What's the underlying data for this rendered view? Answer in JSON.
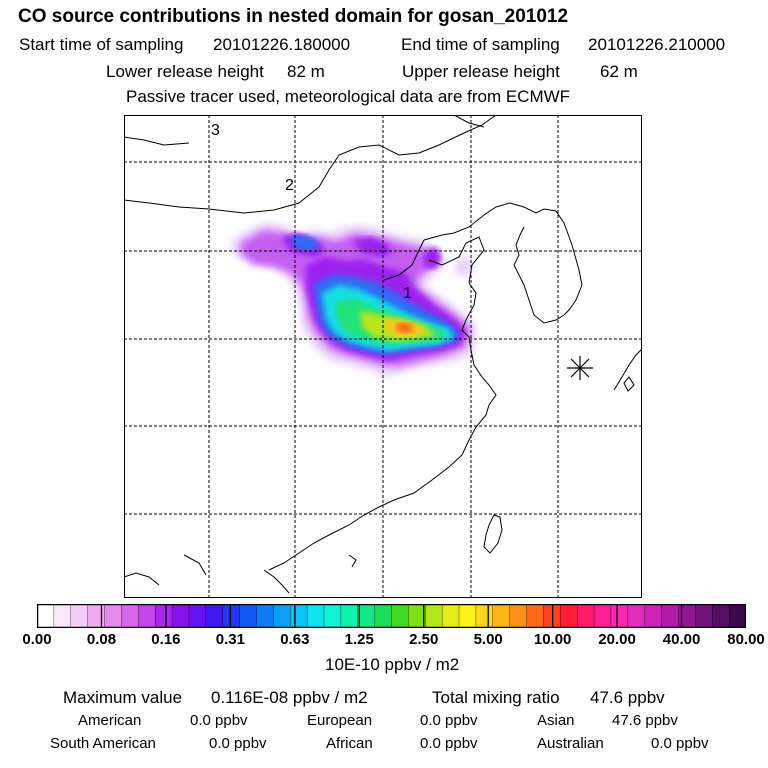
{
  "header": {
    "title": "CO  source contributions in nested domain for gosan_201012",
    "start_label": "Start time of sampling",
    "start_value": "20101226.180000",
    "end_label": "End time of sampling",
    "end_value": "20101226.210000",
    "lower_label": "Lower release height",
    "lower_value": "82 m",
    "upper_label": "Upper release height",
    "upper_value": "62 m",
    "note": "Passive tracer used, meteorological data are from ECMWF"
  },
  "chart_data": {
    "type": "heatmap",
    "title": "CO  source contributions in nested domain for gosan_201012",
    "map_labels": [
      "1",
      "2",
      "3"
    ],
    "colorbar": {
      "ticks": [
        "0.00",
        "0.08",
        "0.16",
        "0.31",
        "0.63",
        "1.25",
        "2.50",
        "5.00",
        "10.00",
        "20.00",
        "40.00",
        "80.00"
      ],
      "unit": "10E-10 ppbv / m2",
      "colors": [
        "#ffffff",
        "#fbe6fb",
        "#f6cbf6",
        "#efaaf0",
        "#e689ec",
        "#d866ea",
        "#c347ea",
        "#a628ea",
        "#8613ec",
        "#6412ee",
        "#4018f0",
        "#2234f2",
        "#1458f4",
        "#0f7bf6",
        "#0d9ff7",
        "#0cc2f6",
        "#0fe4f0",
        "#10f4d6",
        "#10f0ae",
        "#12e886",
        "#1cde5a",
        "#42d822",
        "#7ede1a",
        "#b4e61a",
        "#e3ee1a",
        "#fff21a",
        "#ffd71a",
        "#ffb51a",
        "#ff911a",
        "#ff6a1a",
        "#ff421c",
        "#ff1c36",
        "#ff1a6a",
        "#ff1e95",
        "#f62ab0",
        "#e52cbc",
        "#cc24b8",
        "#b01ca8",
        "#921693",
        "#74127c",
        "#560e66",
        "#3b094e"
      ]
    },
    "plume": [
      {
        "level": "0.08",
        "color": "#ead0fb"
      },
      {
        "level": "0.16",
        "color": "#c45ff2"
      },
      {
        "level": "0.31",
        "color": "#9b22ee"
      },
      {
        "level": "0.63",
        "color": "#2f6cf4"
      },
      {
        "level": "1.25",
        "color": "#12dde6"
      },
      {
        "level": "2.50",
        "color": "#22e27a"
      },
      {
        "level": "5.00",
        "color": "#b9e61e"
      },
      {
        "level": "10.00",
        "color": "#ffc21a"
      },
      {
        "level": "20.00",
        "color": "#ff5a1c"
      }
    ]
  },
  "footer": {
    "max_label": "Maximum value",
    "max_value": "0.116E-08 ppbv / m2",
    "total_label": "Total mixing ratio",
    "total_value": "47.6 ppbv",
    "regions": [
      {
        "name": "American",
        "value": "0.0 ppbv"
      },
      {
        "name": "European",
        "value": "0.0 ppbv"
      },
      {
        "name": "Asian",
        "value": "47.6 ppbv"
      },
      {
        "name": "South American",
        "value": "0.0 ppbv"
      },
      {
        "name": "African",
        "value": "0.0 ppbv"
      },
      {
        "name": "Australian",
        "value": "0.0 ppbv"
      }
    ]
  }
}
